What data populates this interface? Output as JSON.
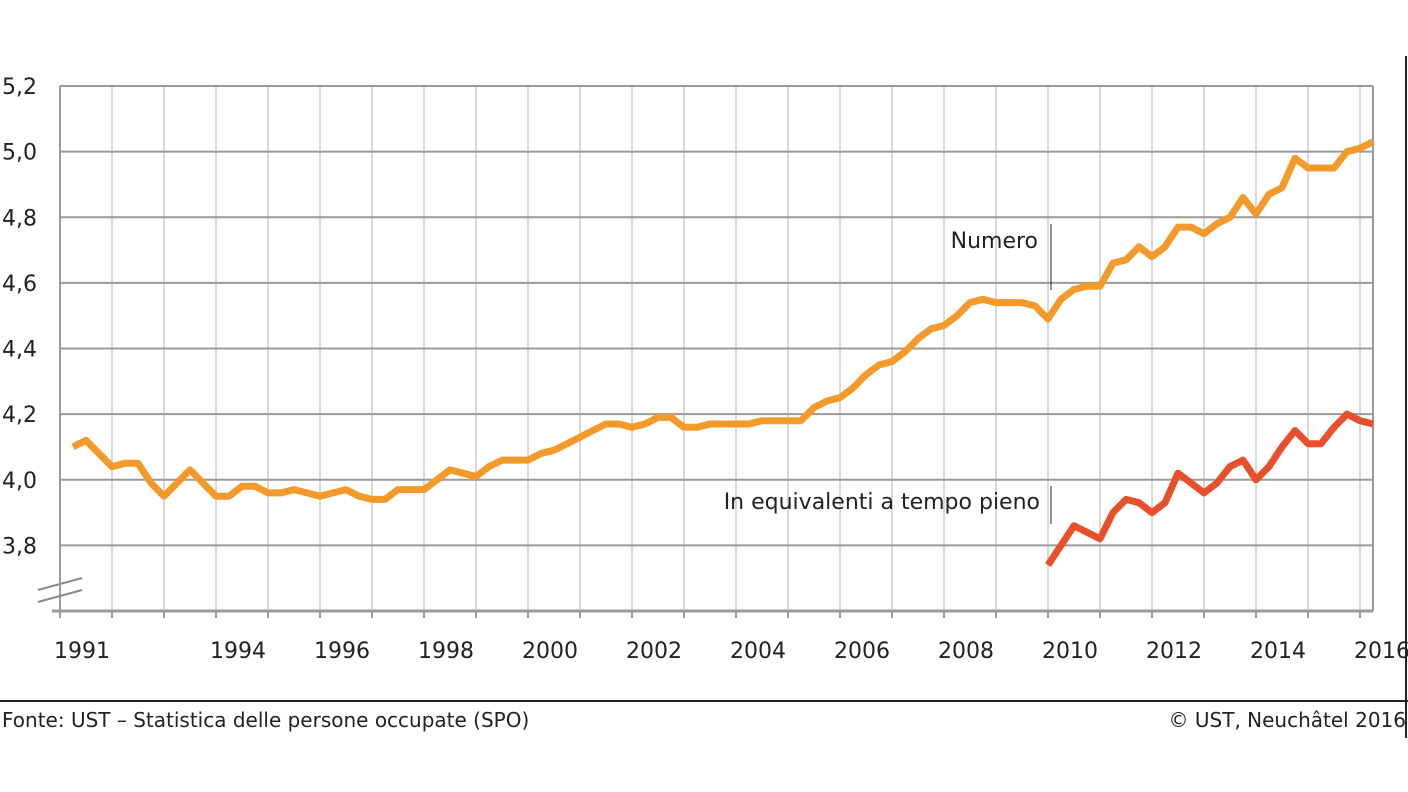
{
  "chart_data": {
    "type": "line",
    "yticks": [
      "3,8",
      "4,0",
      "4,2",
      "4,4",
      "4,6",
      "4,8",
      "5,0",
      "5,2"
    ],
    "ytick_values": [
      3.8,
      4.0,
      4.2,
      4.4,
      4.6,
      4.8,
      5.0,
      5.2
    ],
    "ylim": [
      3.6,
      5.2
    ],
    "xlim": [
      1991,
      2016.25
    ],
    "xticks": [
      "1991",
      "1994",
      "1996",
      "1998",
      "2000",
      "2002",
      "2004",
      "2006",
      "2008",
      "2010",
      "2012",
      "2014",
      "2016"
    ],
    "xtick_values": [
      1991,
      1994,
      1996,
      1998,
      2000,
      2002,
      2004,
      2006,
      2008,
      2010,
      2012,
      2014,
      2016
    ],
    "axis_break": true,
    "grid": true,
    "series": [
      {
        "name": "Numero",
        "color": "#f39a2b",
        "x": [
          1991.25,
          1991.5,
          1991.75,
          1992.0,
          1992.25,
          1992.5,
          1992.75,
          1993.0,
          1993.25,
          1993.5,
          1993.75,
          1994.0,
          1994.25,
          1994.5,
          1994.75,
          1995.0,
          1995.25,
          1995.5,
          1995.75,
          1996.0,
          1996.25,
          1996.5,
          1996.75,
          1997.0,
          1997.25,
          1997.5,
          1997.75,
          1998.0,
          1998.25,
          1998.5,
          1998.75,
          1999.0,
          1999.25,
          1999.5,
          1999.75,
          2000.0,
          2000.25,
          2000.5,
          2000.75,
          2001.0,
          2001.25,
          2001.5,
          2001.75,
          2002.0,
          2002.25,
          2002.5,
          2002.75,
          2003.0,
          2003.25,
          2003.5,
          2003.75,
          2004.0,
          2004.25,
          2004.5,
          2004.75,
          2005.0,
          2005.25,
          2005.5,
          2005.75,
          2006.0,
          2006.25,
          2006.5,
          2006.75,
          2007.0,
          2007.25,
          2007.5,
          2007.75,
          2008.0,
          2008.25,
          2008.5,
          2008.75,
          2009.0,
          2009.25,
          2009.5,
          2009.75,
          2010.0,
          2010.25,
          2010.5,
          2010.75,
          2011.0,
          2011.25,
          2011.5,
          2011.75,
          2012.0,
          2012.25,
          2012.5,
          2012.75,
          2013.0,
          2013.25,
          2013.5,
          2013.75,
          2014.0,
          2014.25,
          2014.5,
          2014.75,
          2015.0,
          2015.25,
          2015.5,
          2015.75,
          2016.0,
          2016.25
        ],
        "values": [
          4.1,
          4.12,
          4.08,
          4.04,
          4.05,
          4.05,
          3.99,
          3.95,
          3.99,
          4.03,
          3.99,
          3.95,
          3.95,
          3.98,
          3.98,
          3.96,
          3.96,
          3.97,
          3.96,
          3.95,
          3.96,
          3.97,
          3.95,
          3.94,
          3.94,
          3.97,
          3.97,
          3.97,
          4.0,
          4.03,
          4.02,
          4.01,
          4.04,
          4.06,
          4.06,
          4.06,
          4.08,
          4.09,
          4.11,
          4.13,
          4.15,
          4.17,
          4.17,
          4.16,
          4.17,
          4.19,
          4.19,
          4.16,
          4.16,
          4.17,
          4.17,
          4.17,
          4.17,
          4.18,
          4.18,
          4.18,
          4.18,
          4.22,
          4.24,
          4.25,
          4.28,
          4.32,
          4.35,
          4.36,
          4.39,
          4.43,
          4.46,
          4.47,
          4.5,
          4.54,
          4.55,
          4.54,
          4.54,
          4.54,
          4.53,
          4.49,
          4.55,
          4.58,
          4.59,
          4.59,
          4.66,
          4.67,
          4.71,
          4.68,
          4.71,
          4.77,
          4.77,
          4.75,
          4.78,
          4.8,
          4.86,
          4.81,
          4.87,
          4.89,
          4.98,
          4.95,
          4.95,
          4.95,
          5.0,
          5.01,
          5.03
        ]
      },
      {
        "name": "In equivalenti a tempo pieno",
        "color": "#e8502b",
        "x": [
          2010.0,
          2010.25,
          2010.5,
          2010.75,
          2011.0,
          2011.25,
          2011.5,
          2011.75,
          2012.0,
          2012.25,
          2012.5,
          2012.75,
          2013.0,
          2013.25,
          2013.5,
          2013.75,
          2014.0,
          2014.25,
          2014.5,
          2014.75,
          2015.0,
          2015.25,
          2015.5,
          2015.75,
          2016.0,
          2016.25
        ],
        "values": [
          3.74,
          3.8,
          3.86,
          3.84,
          3.82,
          3.9,
          3.94,
          3.93,
          3.9,
          3.93,
          4.02,
          3.99,
          3.96,
          3.99,
          4.04,
          4.06,
          4.0,
          4.04,
          4.1,
          4.15,
          4.11,
          4.11,
          4.16,
          4.2,
          4.18,
          4.17
        ]
      }
    ]
  },
  "footer": {
    "source": "Fonte: UST – Statistica delle persone occupate (SPO)",
    "copyright": "© UST, Neuchâtel 2016"
  }
}
